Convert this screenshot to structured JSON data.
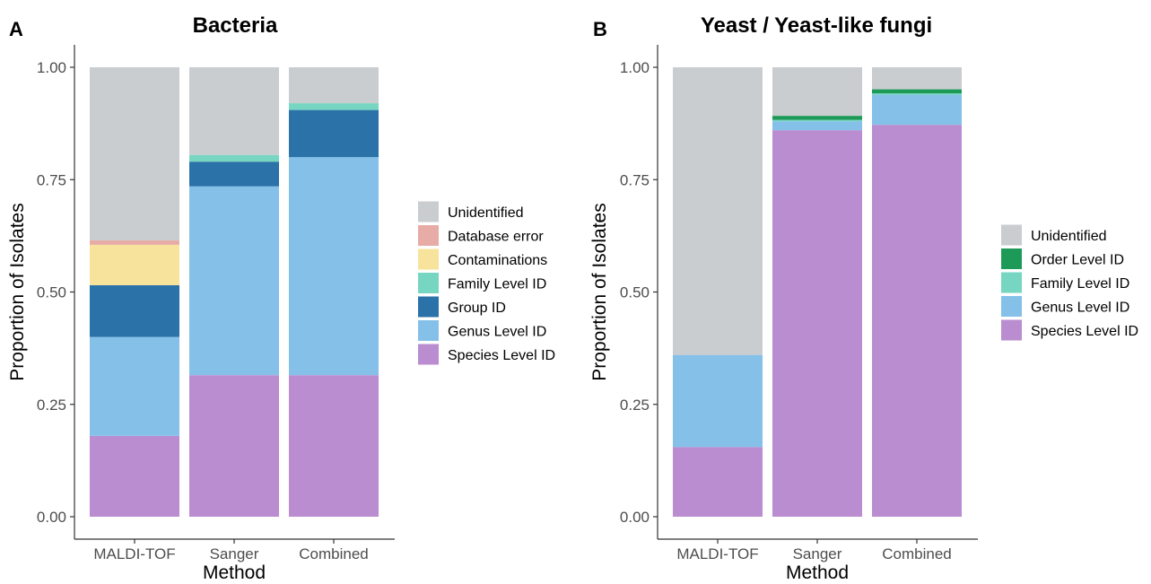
{
  "colors": {
    "Unidentified": "#c9cdd0",
    "Database error": "#e8aca6",
    "Contaminations": "#f8e39d",
    "Family Level ID": "#76d6c1",
    "Group ID": "#2a72a8",
    "Genus Level ID": "#85c0e8",
    "Species Level ID": "#b98dcf",
    "Order Level ID": "#1e9a58"
  },
  "chart_data": [
    {
      "type": "bar",
      "stacked": true,
      "panel_letter": "A",
      "title": "Bacteria",
      "xlabel": "Method",
      "ylabel": "Proportion of Isolates",
      "ylim": [
        0,
        1
      ],
      "yticks": [
        "0.00",
        "0.25",
        "0.50",
        "0.75",
        "1.00"
      ],
      "categories": [
        "MALDI-TOF",
        "Sanger",
        "Combined"
      ],
      "series": [
        {
          "name": "Species Level ID",
          "values": [
            0.18,
            0.315,
            0.315
          ]
        },
        {
          "name": "Genus Level ID",
          "values": [
            0.22,
            0.42,
            0.485
          ]
        },
        {
          "name": "Group ID",
          "values": [
            0.115,
            0.055,
            0.105
          ]
        },
        {
          "name": "Family Level ID",
          "values": [
            0.0,
            0.015,
            0.015
          ]
        },
        {
          "name": "Contaminations",
          "values": [
            0.09,
            0.0,
            0.0
          ]
        },
        {
          "name": "Database error",
          "values": [
            0.01,
            0.0,
            0.0
          ]
        },
        {
          "name": "Unidentified",
          "values": [
            0.385,
            0.195,
            0.08
          ]
        }
      ],
      "legend": [
        "Unidentified",
        "Database error",
        "Contaminations",
        "Family Level ID",
        "Group ID",
        "Genus Level ID",
        "Species Level ID"
      ],
      "legend_position": "right"
    },
    {
      "type": "bar",
      "stacked": true,
      "panel_letter": "B",
      "title": "Yeast / Yeast-like fungi",
      "xlabel": "Method",
      "ylabel": "Proportion of Isolates",
      "ylim": [
        0,
        1
      ],
      "yticks": [
        "0.00",
        "0.25",
        "0.50",
        "0.75",
        "1.00"
      ],
      "categories": [
        "MALDI-TOF",
        "Sanger",
        "Combined"
      ],
      "series": [
        {
          "name": "Species Level ID",
          "values": [
            0.155,
            0.86,
            0.872
          ]
        },
        {
          "name": "Genus Level ID",
          "values": [
            0.205,
            0.02,
            0.067
          ]
        },
        {
          "name": "Family Level ID",
          "values": [
            0.0,
            0.003,
            0.003
          ]
        },
        {
          "name": "Order Level ID",
          "values": [
            0.0,
            0.009,
            0.009
          ]
        },
        {
          "name": "Unidentified",
          "values": [
            0.64,
            0.108,
            0.049
          ]
        }
      ],
      "legend": [
        "Unidentified",
        "Order Level ID",
        "Family Level ID",
        "Genus Level ID",
        "Species Level ID"
      ],
      "legend_position": "right"
    }
  ]
}
